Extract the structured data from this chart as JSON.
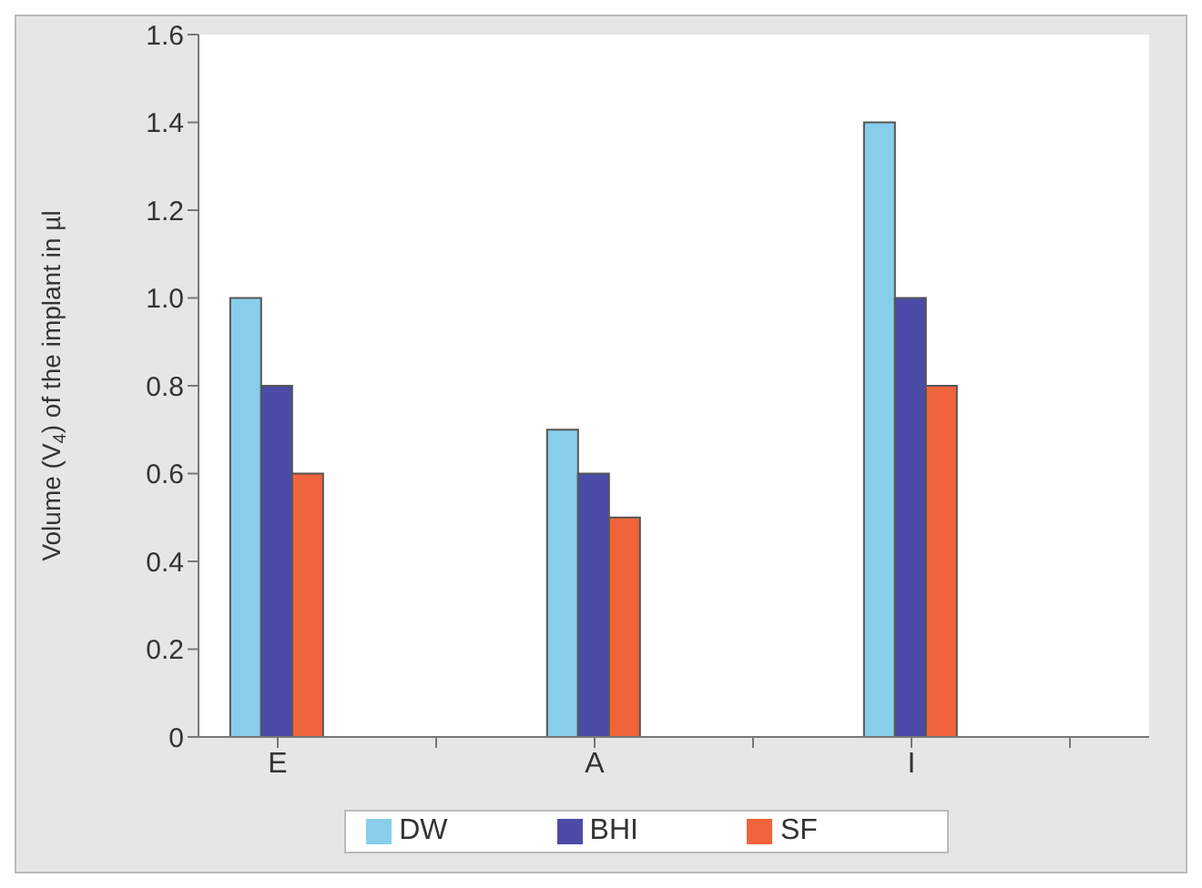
{
  "chart_data": {
    "type": "bar",
    "ylabel": "Volume (V$_{4}$) of the implant in µl",
    "categories": [
      "E",
      null,
      "A",
      null,
      "I",
      null
    ],
    "series": [
      {
        "name": "DW",
        "color": "#87ceeb",
        "values": [
          1.0,
          null,
          0.7,
          null,
          1.4,
          null
        ]
      },
      {
        "name": "BHI",
        "color": "#4b4ba8",
        "values": [
          0.8,
          null,
          0.6,
          null,
          1.0,
          null
        ]
      },
      {
        "name": "SF",
        "color": "#f0643c",
        "values": [
          0.6,
          null,
          0.5,
          null,
          0.8,
          null
        ]
      }
    ],
    "ylim": [
      0,
      1.6
    ],
    "yticks": [
      0,
      0.2,
      0.4,
      0.6,
      0.8,
      {
        "value": 1,
        "label": "1.0"
      },
      1.2,
      1.4,
      1.6
    ],
    "grid": false,
    "legend": "bottom"
  }
}
